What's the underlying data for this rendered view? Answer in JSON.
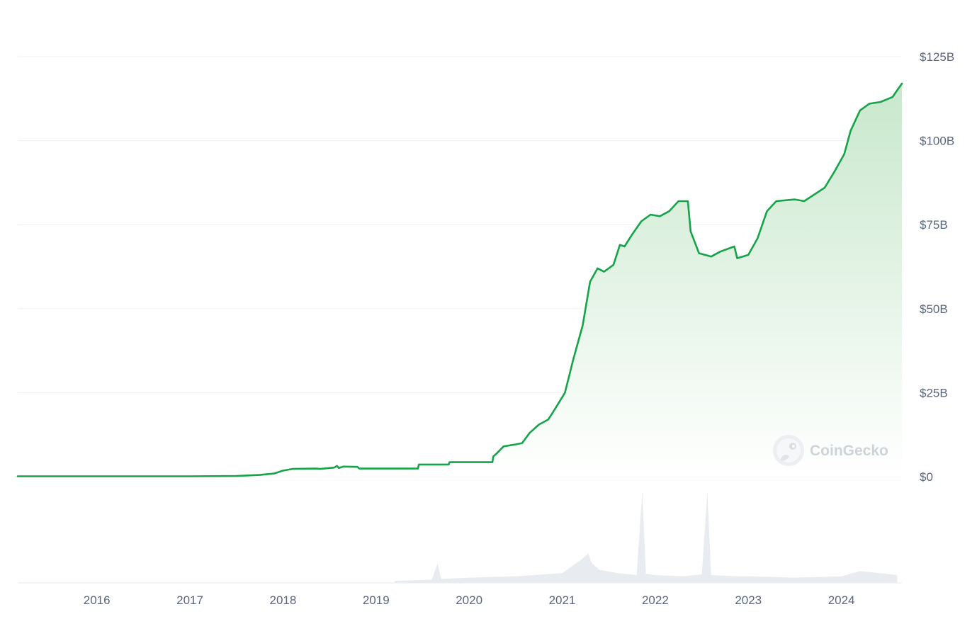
{
  "colors": {
    "line": "#16a34a",
    "area_top": "#c8e8cc",
    "area_bottom": "#ffffff",
    "volume": "#e8ebef",
    "grid": "#eef0f3",
    "tick_text": "#58667e"
  },
  "watermark": {
    "icon": "gecko-icon",
    "text": "CoinGecko"
  },
  "chart_data": [
    {
      "type": "area",
      "title": "",
      "xlabel": "",
      "ylabel": "",
      "x_unit": "year",
      "y_unit": "USD billions",
      "xlim": [
        2015.15,
        2024.65
      ],
      "ylim": [
        0,
        125
      ],
      "grid": true,
      "legend": "none",
      "y_ticks": [
        {
          "value": 0,
          "label": "$0"
        },
        {
          "value": 25,
          "label": "$25B"
        },
        {
          "value": 50,
          "label": "$50B"
        },
        {
          "value": 75,
          "label": "$75B"
        },
        {
          "value": 100,
          "label": "$100B"
        },
        {
          "value": 125,
          "label": "$125B"
        }
      ],
      "x_ticks": [
        {
          "value": 2016,
          "label": "2016"
        },
        {
          "value": 2017,
          "label": "2017"
        },
        {
          "value": 2018,
          "label": "2018"
        },
        {
          "value": 2019,
          "label": "2019"
        },
        {
          "value": 2020,
          "label": "2020"
        },
        {
          "value": 2021,
          "label": "2021"
        },
        {
          "value": 2022,
          "label": "2022"
        },
        {
          "value": 2023,
          "label": "2023"
        },
        {
          "value": 2024,
          "label": "2024"
        }
      ],
      "series": [
        {
          "x": [
            2015.15,
            2016.0,
            2017.0,
            2017.5,
            2017.75,
            2017.9,
            2018.0,
            2018.08,
            2018.1,
            2018.35,
            2018.4,
            2018.55,
            2018.58,
            2018.6,
            2018.65,
            2018.8,
            2018.82,
            2019.2,
            2019.45,
            2019.46,
            2019.78,
            2019.79,
            2020.25,
            2020.26,
            2020.3,
            2020.37,
            2020.5,
            2020.57,
            2020.65,
            2020.75,
            2020.85,
            2020.92,
            2021.03,
            2021.12,
            2021.22,
            2021.3,
            2021.38,
            2021.45,
            2021.55,
            2021.62,
            2021.67,
            2021.75,
            2021.85,
            2021.95,
            2022.05,
            2022.15,
            2022.25,
            2022.35,
            2022.38,
            2022.47,
            2022.6,
            2022.7,
            2022.85,
            2022.88,
            2023.0,
            2023.1,
            2023.2,
            2023.3,
            2023.5,
            2023.6,
            2023.82,
            2023.93,
            2024.03,
            2024.1,
            2024.2,
            2024.3,
            2024.42,
            2024.55,
            2024.6,
            2024.65
          ],
          "y": [
            0.1,
            0.1,
            0.1,
            0.2,
            0.5,
            0.9,
            1.8,
            2.2,
            2.3,
            2.4,
            2.3,
            2.7,
            3.2,
            2.6,
            3.0,
            2.9,
            2.4,
            2.4,
            2.4,
            3.6,
            3.6,
            4.3,
            4.3,
            6.0,
            7.0,
            9.0,
            9.6,
            10.0,
            13.0,
            15.5,
            17.0,
            20.0,
            25.0,
            35.0,
            45.0,
            58.0,
            62.0,
            61.0,
            63.0,
            69.0,
            68.5,
            72.0,
            76.0,
            78.0,
            77.5,
            79.0,
            82.0,
            82.0,
            73.0,
            66.5,
            65.5,
            67.0,
            68.5,
            65.0,
            66.0,
            71.0,
            79.0,
            82.0,
            82.5,
            82.0,
            86.0,
            91.0,
            96.0,
            103.0,
            109.0,
            111.0,
            111.5,
            113.0,
            115.0,
            117.0
          ]
        }
      ],
      "volume_series": {
        "x": [
          2019.2,
          2019.6,
          2019.66,
          2019.7,
          2020.0,
          2020.5,
          2021.0,
          2021.1,
          2021.2,
          2021.28,
          2021.32,
          2021.4,
          2021.6,
          2021.8,
          2021.86,
          2021.9,
          2022.0,
          2022.3,
          2022.5,
          2022.56,
          2022.6,
          2022.9,
          2023.0,
          2023.5,
          2024.0,
          2024.2,
          2024.6
        ],
        "y": [
          0.3,
          0.5,
          3.0,
          0.6,
          0.8,
          1.0,
          1.5,
          2.5,
          3.5,
          4.5,
          3.0,
          2.0,
          1.5,
          1.2,
          14.0,
          1.4,
          1.2,
          1.0,
          1.3,
          14.0,
          1.2,
          1.0,
          1.0,
          0.8,
          1.0,
          1.8,
          1.2
        ],
        "ymax": 15
      }
    }
  ]
}
